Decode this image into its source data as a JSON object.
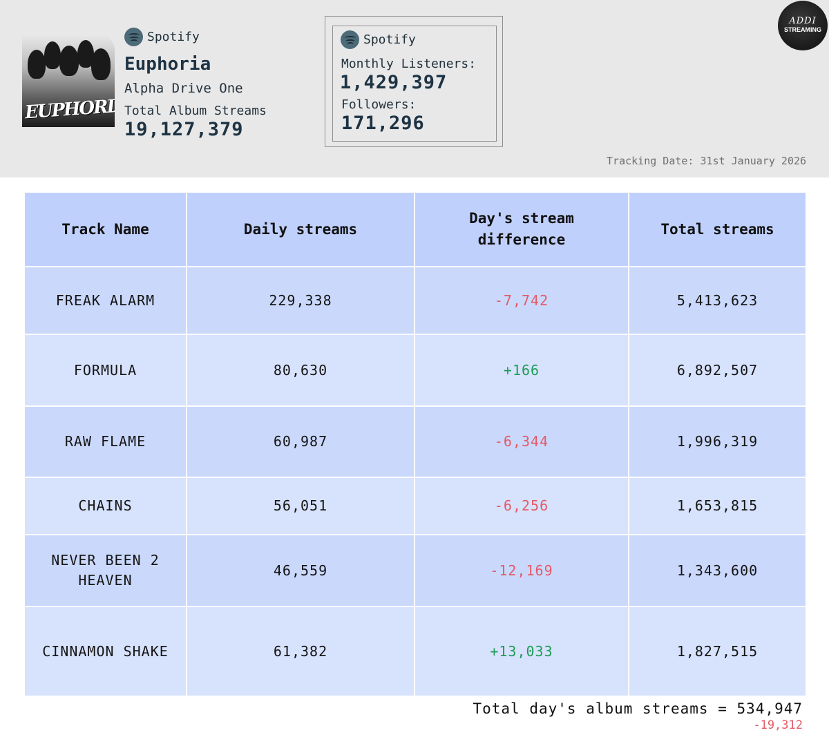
{
  "header": {
    "platform": "Spotify",
    "album": {
      "title": "Euphoria",
      "artist": "Alpha Drive One",
      "streams_label": "Total Album Streams",
      "streams_value": "19,127,379",
      "cover_text": "EUPHORIA"
    },
    "artist_box": {
      "platform": "Spotify",
      "monthly_label": "Monthly Listeners:",
      "monthly_value": "1,429,397",
      "followers_label": "Followers:",
      "followers_value": "171,296"
    },
    "badge_script": "ADDI",
    "badge_text": "STREAMING",
    "tracking_date": "Tracking Date: 31st January 2026"
  },
  "table": {
    "columns": [
      "Track Name",
      "Daily streams",
      "Day's stream difference",
      "Total streams"
    ],
    "rows": [
      {
        "track": "FREAK ALARM",
        "daily": "229,338",
        "diff": "-7,742",
        "total": "5,413,623"
      },
      {
        "track": "FORMULA",
        "daily": "80,630",
        "diff": "+166",
        "total": "6,892,507"
      },
      {
        "track": "RAW FLAME",
        "daily": "60,987",
        "diff": "-6,344",
        "total": "1,996,319"
      },
      {
        "track": "CHAINS",
        "daily": "56,051",
        "diff": "-6,256",
        "total": "1,653,815"
      },
      {
        "track": "NEVER BEEN 2 HEAVEN",
        "daily": "46,559",
        "diff": "-12,169",
        "total": "1,343,600"
      },
      {
        "track": "CINNAMON SHAKE",
        "daily": "61,382",
        "diff": "+13,033",
        "total": "1,827,515"
      }
    ]
  },
  "footer": {
    "total_line": "Total day's album streams = 534,947",
    "total_diff": "-19,312"
  },
  "colors": {
    "header_bg": "#e8e8e8",
    "table_header": "#c0d0fc",
    "row_odd": "#cad8fb",
    "row_even": "#d7e2fc",
    "negative": "#e45a67",
    "positive": "#1c9c57",
    "title_text": "#1d3344"
  }
}
